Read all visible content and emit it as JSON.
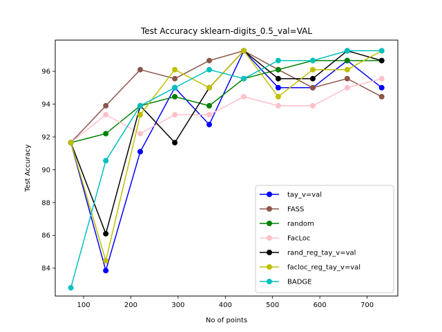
{
  "chart_data": {
    "type": "line",
    "title": "Test Accuracy sklearn-digits_0.5_val=VAL",
    "xlabel": "No of points",
    "ylabel": "Test Accuracy",
    "xlim": [
      40,
      765
    ],
    "ylim": [
      82.3,
      97.9
    ],
    "xticks": [
      100,
      200,
      300,
      400,
      500,
      600,
      700
    ],
    "yticks": [
      84,
      86,
      88,
      90,
      92,
      94,
      96
    ],
    "grid": false,
    "legend_position": "lower-right",
    "x": [
      73,
      147,
      220,
      293,
      366,
      439,
      512,
      585,
      658,
      731
    ],
    "series": [
      {
        "name": "tay_v=val",
        "color": "#0000ff",
        "values": [
          91.65,
          83.85,
          91.1,
          95.0,
          92.75,
          97.25,
          95.0,
          95.0,
          96.65,
          95.0
        ]
      },
      {
        "name": "FASS",
        "color": "#8c564b",
        "values": [
          91.65,
          93.9,
          96.1,
          95.55,
          96.65,
          97.25,
          96.1,
          95.0,
          95.55,
          94.45
        ]
      },
      {
        "name": "random",
        "color": "#008000",
        "values": [
          91.65,
          92.2,
          93.9,
          94.45,
          93.9,
          95.55,
          96.1,
          96.65,
          96.65,
          96.65
        ]
      },
      {
        "name": "FacLoc",
        "color": "#ffc0cb",
        "values": [
          91.65,
          93.35,
          92.2,
          93.35,
          93.35,
          94.45,
          93.9,
          93.9,
          95.0,
          95.55
        ]
      },
      {
        "name": "rand_reg_tay_v=val",
        "color": "#000000",
        "values": [
          91.65,
          86.1,
          93.9,
          91.65,
          95.0,
          97.25,
          95.55,
          95.55,
          97.25,
          96.65
        ]
      },
      {
        "name": "facloc_reg_tay_v=val",
        "color": "#bfbf00",
        "values": [
          91.65,
          84.45,
          93.35,
          96.1,
          95.0,
          97.25,
          94.45,
          96.1,
          96.1,
          97.25
        ]
      },
      {
        "name": "BADGE",
        "color": "#00bfbf",
        "values": [
          82.8,
          90.55,
          93.9,
          95.0,
          96.1,
          95.55,
          96.65,
          96.65,
          97.25,
          97.25
        ]
      }
    ]
  }
}
